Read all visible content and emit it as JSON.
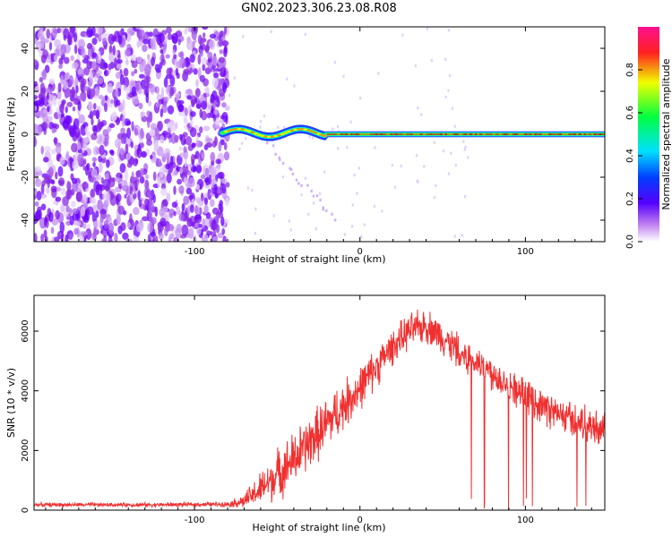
{
  "title": "GN02.2023.306.23.08.R08",
  "chart_data": [
    {
      "type": "heatmap",
      "title": "",
      "xlabel": "Height of straight line (km)",
      "ylabel": "Frequency (Hz)",
      "xlim": [
        -197,
        148
      ],
      "ylim": [
        -50,
        50
      ],
      "xticks": [
        -100,
        0,
        100
      ],
      "yticks": [
        -40,
        -20,
        0,
        20,
        40
      ],
      "colorbar": {
        "label": "Normalized spectral amplitude",
        "range": [
          0,
          1
        ],
        "ticks": [
          "0.0",
          "0.2",
          "0.4",
          "0.6",
          "0.8"
        ],
        "colormap": "rainbow (white-purple-blue-cyan-green-yellow-red-pink)"
      },
      "features": {
        "noise_region_x": [
          -197,
          -83
        ],
        "signal_line_start_x": -83,
        "signal_frequency_hz": 0,
        "early_signal_offset_hz": 2,
        "sparse_diagonal_track": {
          "x": [
            -55,
            -15
          ],
          "y": [
            -5,
            -40
          ]
        }
      }
    },
    {
      "type": "line",
      "title": "",
      "xlabel": "Height of straight line (km)",
      "ylabel": "SNR (10 * v/v)",
      "xlim": [
        -197,
        148
      ],
      "ylim": [
        0,
        7200
      ],
      "xticks": [
        -100,
        0,
        100
      ],
      "yticks": [
        0,
        2000,
        4000,
        6000
      ],
      "color": "#f03030",
      "envelope": {
        "x": [
          -197,
          -120,
          -80,
          -70,
          -60,
          -50,
          -40,
          -30,
          -20,
          -10,
          0,
          10,
          20,
          30,
          40,
          50,
          60,
          80,
          100,
          120,
          148
        ],
        "base": [
          180,
          180,
          200,
          300,
          700,
          1200,
          1700,
          2300,
          2900,
          3500,
          4100,
          4800,
          5500,
          6000,
          6200,
          5800,
          5300,
          4600,
          3800,
          3200,
          2700
        ],
        "noise": [
          80,
          80,
          100,
          300,
          700,
          1000,
          1100,
          1100,
          1100,
          1000,
          900,
          800,
          700,
          700,
          700,
          700,
          700,
          700,
          700,
          700,
          700
        ]
      }
    }
  ]
}
